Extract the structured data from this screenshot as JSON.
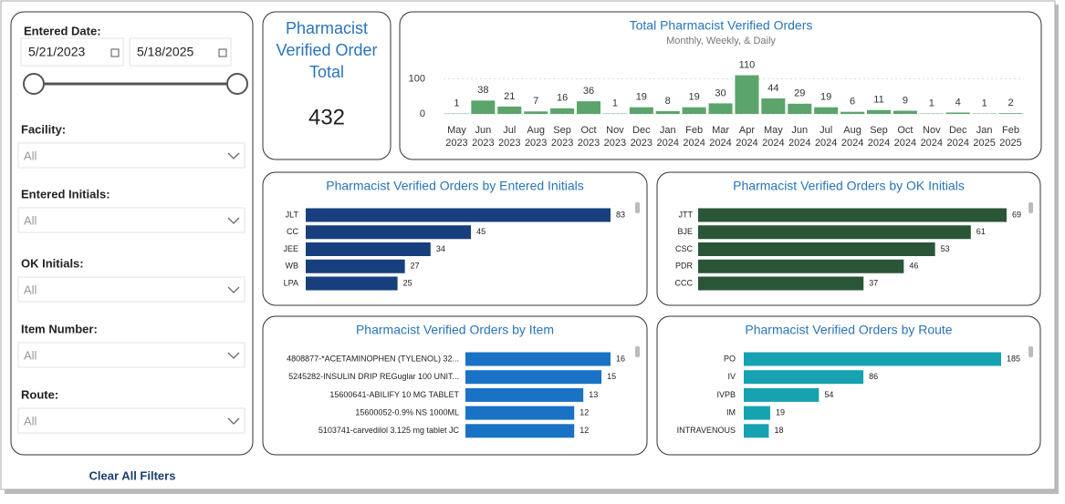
{
  "filters": {
    "entered_date": {
      "label": "Entered Date:",
      "start": "5/21/2023",
      "end": "5/18/2025"
    },
    "dropdowns": [
      {
        "label": "Facility:",
        "value": "All"
      },
      {
        "label": "Entered Initials:",
        "value": "All"
      },
      {
        "label": "OK Initials:",
        "value": "All"
      },
      {
        "label": "Item Number:",
        "value": "All"
      },
      {
        "label": "Route:",
        "value": "All"
      }
    ],
    "clear": "Clear All Filters"
  },
  "kpi": {
    "title": "Pharmacist Verified Order Total",
    "value": 432
  },
  "charts": [
    {
      "type": "column",
      "title": "Total Pharmacist Verified Orders",
      "subtitle": "Monthly, Weekly, & Daily",
      "color": "#5ba46c",
      "categories": [
        [
          "May",
          "2023"
        ],
        [
          "Jun",
          "2023"
        ],
        [
          "Jul",
          "2023"
        ],
        [
          "Aug",
          "2023"
        ],
        [
          "Sep",
          "2023"
        ],
        [
          "Oct",
          "2023"
        ],
        [
          "Nov",
          "2023"
        ],
        [
          "Dec",
          "2023"
        ],
        [
          "Jan",
          "2024"
        ],
        [
          "Feb",
          "2024"
        ],
        [
          "Mar",
          "2024"
        ],
        [
          "Apr",
          "2024"
        ],
        [
          "May",
          "2024"
        ],
        [
          "Jun",
          "2024"
        ],
        [
          "Jul",
          "2024"
        ],
        [
          "Aug",
          "2024"
        ],
        [
          "Sep",
          "2024"
        ],
        [
          "Oct",
          "2024"
        ],
        [
          "Nov",
          "2024"
        ],
        [
          "Dec",
          "2024"
        ],
        [
          "Jan",
          "2025"
        ],
        [
          "Feb",
          "2025"
        ]
      ],
      "values": [
        1,
        38,
        21,
        7,
        16,
        36,
        1,
        19,
        8,
        19,
        30,
        110,
        44,
        29,
        19,
        6,
        11,
        9,
        1,
        4,
        1,
        2
      ],
      "ylim": [
        0,
        114
      ],
      "yticks": [
        0,
        100
      ]
    },
    {
      "type": "hbar",
      "title": "Pharmacist Verified Orders by Entered Initials",
      "color": "#173f7d",
      "categories": [
        "JLT",
        "CC",
        "JEE",
        "WB",
        "LPA"
      ],
      "values": [
        83,
        45,
        34,
        27,
        25
      ],
      "xlim": [
        0,
        83
      ]
    },
    {
      "type": "hbar",
      "title": "Pharmacist Verified Orders by OK Initials",
      "color": "#2b5537",
      "categories": [
        "JTT",
        "BJE",
        "CSC",
        "PDR",
        "CCC"
      ],
      "values": [
        69,
        61,
        53,
        46,
        37
      ],
      "xlim": [
        0,
        69
      ]
    },
    {
      "type": "hbar",
      "title": "Pharmacist Verified Orders by Item",
      "color": "#1a72c4",
      "categories": [
        "4808877-*ACETAMINOPHEN (TYLENOL) 32...",
        "5245282-INSULIN DRIP REGuglar 100 UNIT...",
        "15600641-ABILIFY 10 MG TABLET",
        "15600052-0.9% NS 1000ML",
        "5103741-carvedilol 3.125 mg tablet JC"
      ],
      "values": [
        16,
        15,
        13,
        12,
        12
      ],
      "xlim": [
        0,
        16
      ]
    },
    {
      "type": "hbar",
      "title": "Pharmacist Verified Orders by Route",
      "color": "#16a2b0",
      "categories": [
        "PO",
        "IV",
        "IVPB",
        "IM",
        "INTRAVENOUS"
      ],
      "values": [
        185,
        86,
        54,
        19,
        18
      ],
      "xlim": [
        0,
        185
      ]
    }
  ]
}
